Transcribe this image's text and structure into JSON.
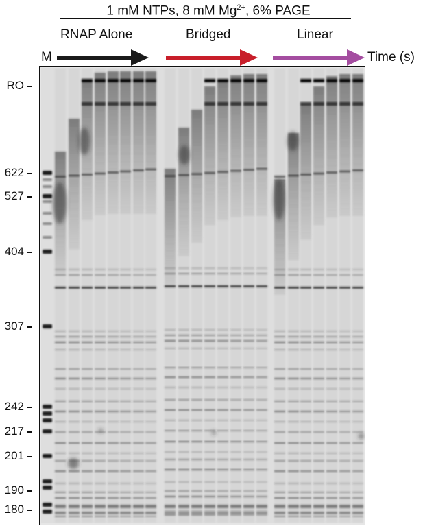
{
  "title": {
    "prefix": "1 mM NTPs, 8 mM Mg",
    "superscript": "2+",
    "suffix": ", 6% PAGE"
  },
  "groups": [
    {
      "label": "RNAP Alone",
      "arrow_color": "#1a1a1a"
    },
    {
      "label": "Bridged",
      "arrow_color": "#c81e2a"
    },
    {
      "label": "Linear",
      "arrow_color": "#a44da0"
    }
  ],
  "marker_lane_label": "M",
  "time_axis_label": "Time (s)",
  "size_markers": [
    {
      "label": "RO"
    },
    {
      "label": "622"
    },
    {
      "label": "527"
    },
    {
      "label": "404"
    },
    {
      "label": "307"
    },
    {
      "label": "242"
    },
    {
      "label": "217"
    },
    {
      "label": "201"
    },
    {
      "label": "190"
    },
    {
      "label": "180"
    }
  ]
}
